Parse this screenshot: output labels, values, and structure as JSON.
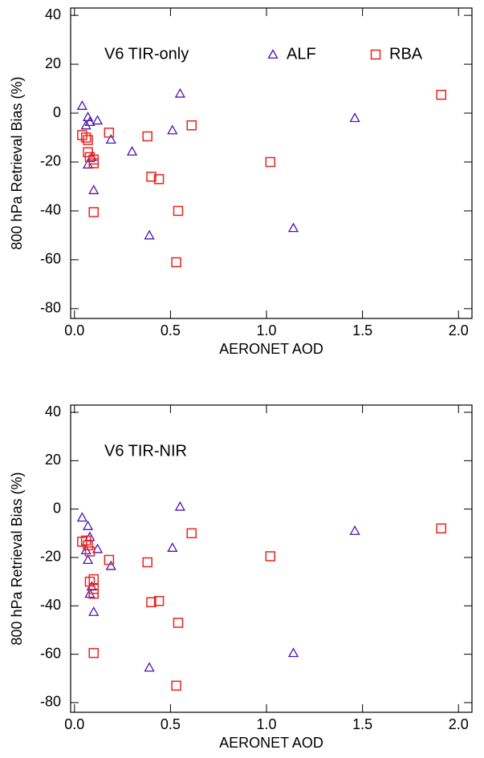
{
  "chart_data": [
    {
      "type": "scatter",
      "annotation": "V6 TIR-only",
      "x_label": "AERONET AOD",
      "y_label": "800 hPa Retrieval Bias (%)",
      "xlim": [
        -0.02,
        2.07
      ],
      "ylim": [
        -84,
        43
      ],
      "xticks": [
        {
          "value": 0,
          "label": "0.0"
        },
        {
          "value": 0.5,
          "label": "0.5"
        },
        {
          "value": 1,
          "label": "1.0"
        },
        {
          "value": 1.5,
          "label": "1.5"
        },
        {
          "value": 2,
          "label": "2.0"
        }
      ],
      "yticks": [
        40,
        20,
        0,
        -20,
        -40,
        -60,
        -80
      ],
      "legend": "top",
      "series": [
        {
          "name": "ALF",
          "marker": "triangle",
          "color": "#4b14b4",
          "x": [
            0.04,
            0.07,
            0.06,
            0.08,
            0.12,
            0.07,
            0.09,
            0.1,
            0.19,
            0.3,
            0.39,
            0.51,
            0.55,
            1.14,
            1.46
          ],
          "values": [
            3,
            -1.6,
            -5,
            -3.6,
            -3,
            -21,
            -18,
            -31.5,
            -10.8,
            -15.7,
            -50,
            -7,
            8,
            -47,
            -2
          ]
        },
        {
          "name": "RBA",
          "marker": "square",
          "color": "#e8231e",
          "x": [
            0.04,
            0.06,
            0.07,
            0.07,
            0.08,
            0.1,
            0.1,
            0.1,
            0.18,
            0.38,
            0.4,
            0.44,
            0.54,
            0.53,
            0.61,
            1.02,
            1.91
          ],
          "values": [
            -9,
            -10,
            -11,
            -16,
            -18,
            -19,
            -20.5,
            -40.5,
            -8,
            -9.5,
            -26,
            -27,
            -40,
            -61,
            -5,
            -20,
            7.5
          ]
        }
      ]
    },
    {
      "type": "scatter",
      "annotation": "V6 TIR-NIR",
      "x_label": "AERONET AOD",
      "y_label": "800 hPa Retrieval Bias (%)",
      "xlim": [
        -0.02,
        2.07
      ],
      "ylim": [
        -84,
        43
      ],
      "xticks": [
        {
          "value": 0,
          "label": "0.0"
        },
        {
          "value": 0.5,
          "label": "0.5"
        },
        {
          "value": 1,
          "label": "1.0"
        },
        {
          "value": 1.5,
          "label": "1.5"
        },
        {
          "value": 2,
          "label": "2.0"
        }
      ],
      "yticks": [
        40,
        20,
        0,
        -20,
        -40,
        -60,
        -80
      ],
      "series": [
        {
          "marker": "triangle",
          "color": "#4b14b4",
          "x": [
            0.04,
            0.07,
            0.08,
            0.06,
            0.07,
            0.08,
            0.09,
            0.1,
            0.12,
            0.19,
            0.39,
            0.51,
            0.55,
            1.14,
            1.46
          ],
          "values": [
            -3.5,
            -7,
            -11.5,
            -17,
            -21,
            -35,
            -32,
            -42.5,
            -16.5,
            -23.5,
            -65.5,
            -16,
            1,
            -59.5,
            -9
          ]
        },
        {
          "marker": "square",
          "color": "#e8231e",
          "x": [
            0.04,
            0.06,
            0.07,
            0.08,
            0.08,
            0.1,
            0.1,
            0.1,
            0.1,
            0.18,
            0.38,
            0.4,
            0.44,
            0.54,
            0.53,
            0.61,
            1.02,
            1.91
          ],
          "values": [
            -13.5,
            -13,
            -15,
            -17.5,
            -30,
            -29,
            -33,
            -35,
            -59.5,
            -21,
            -22,
            -38.5,
            -38,
            -47,
            -73,
            -10,
            -19.5,
            -8
          ]
        }
      ]
    }
  ]
}
